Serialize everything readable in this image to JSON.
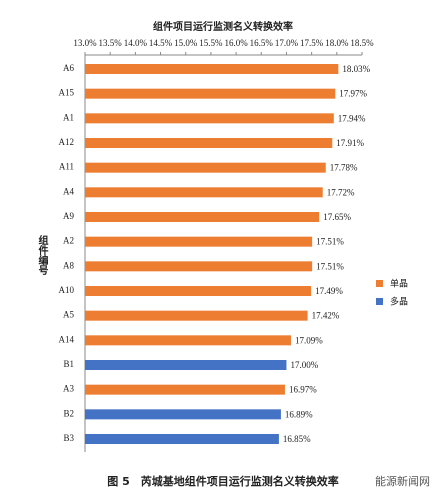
{
  "chart_data": {
    "type": "bar",
    "orientation": "horizontal",
    "title": "组件项目运行监测名义转换效率",
    "y_label": "组件编号",
    "caption": "图 5　芮城基地组件项目运行监测名义转换效率",
    "watermark": "能源新闻网",
    "categories": [
      "A6",
      "A15",
      "A1",
      "A12",
      "A11",
      "A4",
      "A9",
      "A2",
      "A8",
      "A10",
      "A5",
      "A14",
      "B1",
      "A3",
      "B2",
      "B3"
    ],
    "series": [
      {
        "name": "单晶",
        "color": "#ed7d31",
        "values": [
          18.03,
          17.97,
          17.94,
          17.91,
          17.78,
          17.72,
          17.65,
          17.51,
          17.51,
          17.49,
          17.42,
          17.09,
          null,
          16.97,
          null,
          null
        ],
        "value_labels": [
          "18.03%",
          "17.97%",
          "17.94%",
          "17.91%",
          "17.78%",
          "17.72%",
          "17.65%",
          "17.51%",
          "17.51%",
          "17.49%",
          "17.42%",
          "17.09%",
          null,
          "16.97%",
          null,
          null
        ]
      },
      {
        "name": "多晶",
        "color": "#4472c4",
        "values": [
          null,
          null,
          null,
          null,
          null,
          null,
          null,
          null,
          null,
          null,
          null,
          null,
          17.0,
          null,
          16.89,
          16.85
        ],
        "value_labels": [
          null,
          null,
          null,
          null,
          null,
          null,
          null,
          null,
          null,
          null,
          null,
          null,
          "17.00%",
          null,
          "16.89%",
          "16.85%"
        ]
      }
    ],
    "xlim": [
      13.0,
      18.5
    ],
    "xticks": [
      {
        "value": 13.0,
        "label": "13.0%"
      },
      {
        "value": 13.5,
        "label": "13.5%"
      },
      {
        "value": 14.0,
        "label": "14.0%"
      },
      {
        "value": 14.5,
        "label": "14.5%"
      },
      {
        "value": 15.0,
        "label": "15.0%"
      },
      {
        "value": 15.5,
        "label": "15.5%"
      },
      {
        "value": 16.0,
        "label": "16.0%"
      },
      {
        "value": 16.5,
        "label": "16.5%"
      },
      {
        "value": 17.0,
        "label": "17.0%"
      },
      {
        "value": 17.5,
        "label": "17.5%"
      },
      {
        "value": 18.0,
        "label": "18.0%"
      },
      {
        "value": 18.5,
        "label": "18.5%"
      }
    ],
    "xaxis_position": "top",
    "legend_position": "right"
  }
}
